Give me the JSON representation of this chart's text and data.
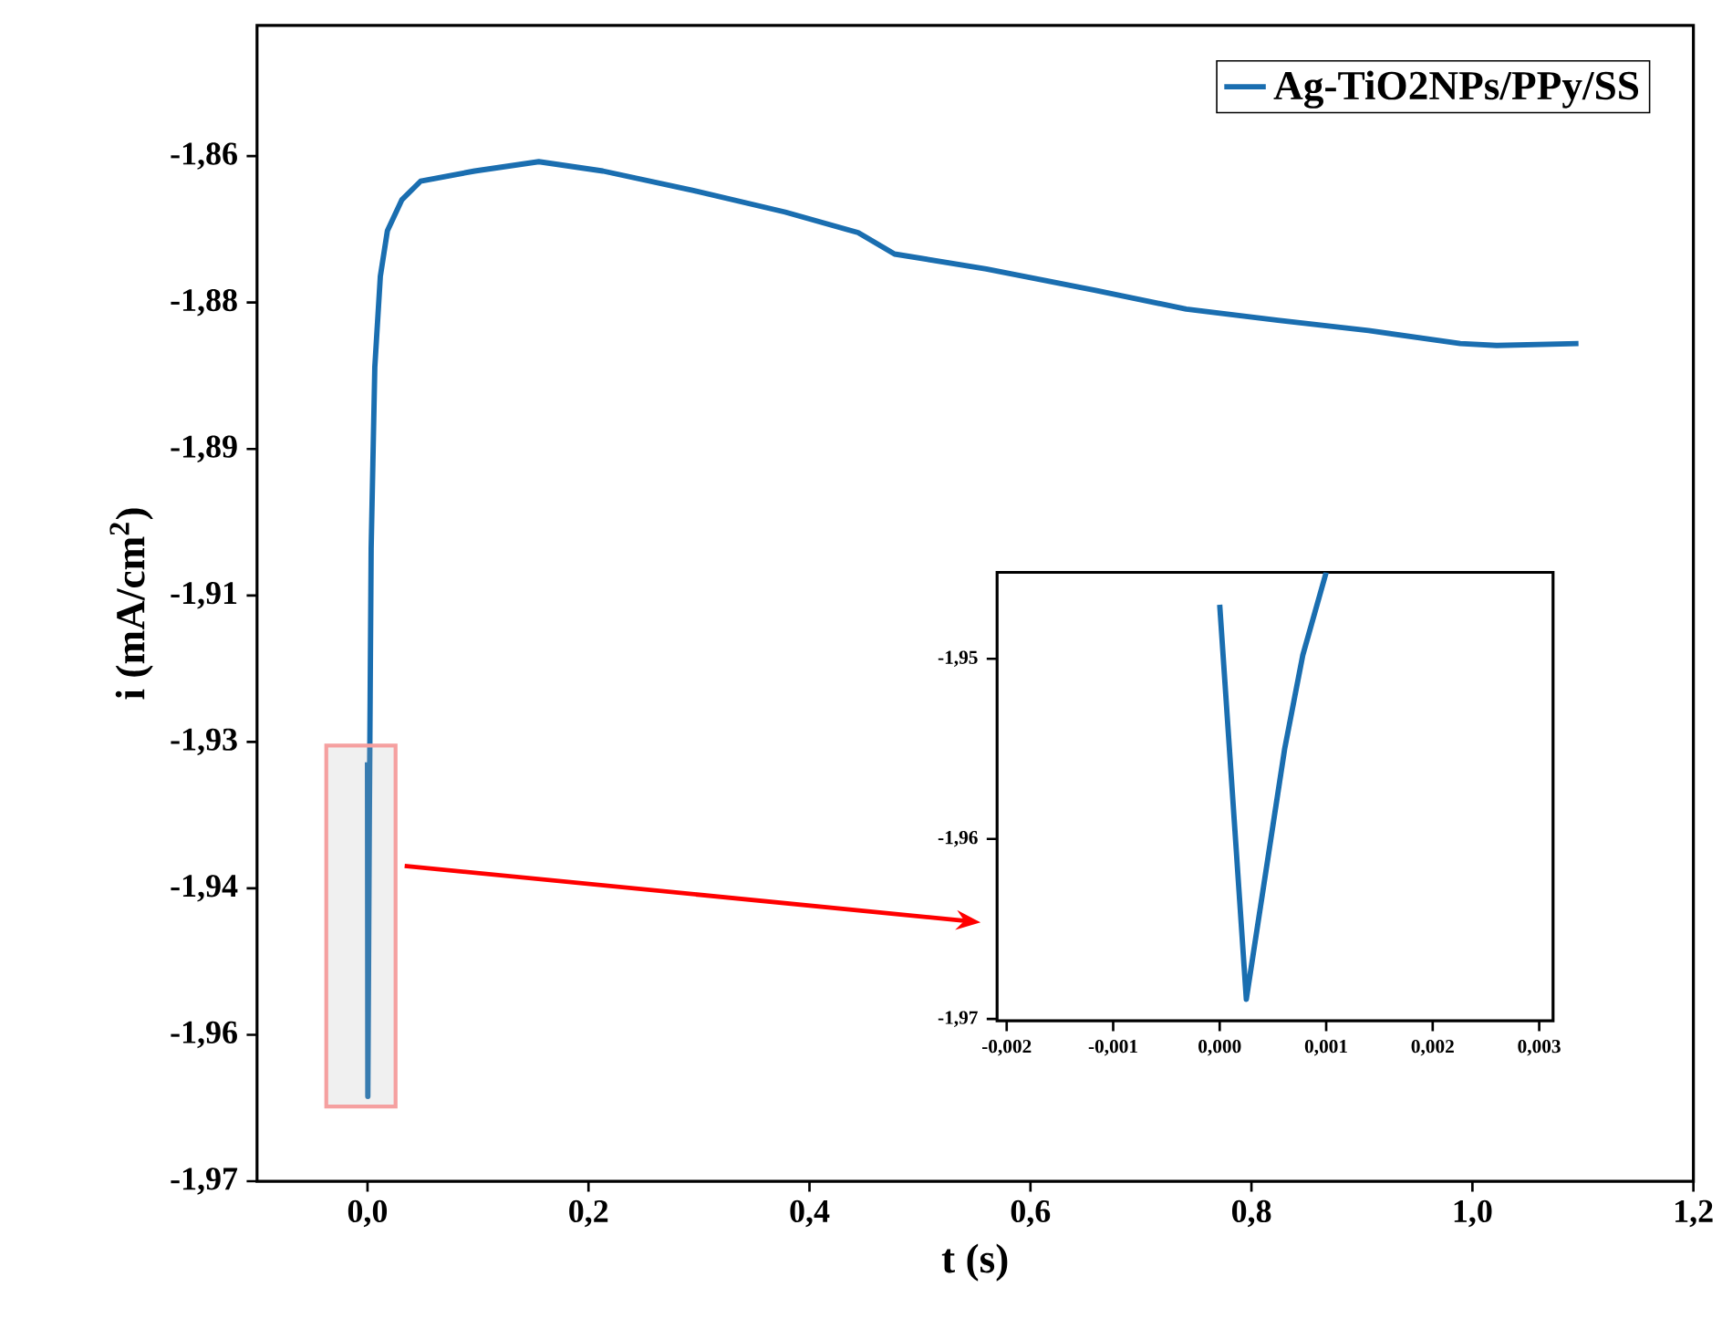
{
  "chart_data": [
    {
      "type": "line",
      "xlabel": "t (s)",
      "ylabel": "i (mA/cm$^{2}$)",
      "legend": "top right",
      "series": [
        {
          "name": "Ag-TiO2NPs/PPy/SS",
          "color": "#1a6eb0",
          "x": [
            0,
            0.0003,
            0.0017,
            0.0033,
            0.0066,
            0.0116,
            0.018,
            0.031,
            0.048,
            0.097,
            0.155,
            0.213,
            0.295,
            0.378,
            0.444,
            0.477,
            0.56,
            0.659,
            0.741,
            0.824,
            0.906,
            0.989,
            1.022,
            1.096
          ],
          "values": [
            -1.9275,
            -1.9633,
            -1.9325,
            -1.9046,
            -1.8851,
            -1.8754,
            -1.8705,
            -1.8672,
            -1.8652,
            -1.8641,
            -1.8631,
            -1.8641,
            -1.8662,
            -1.8685,
            -1.8707,
            -1.873,
            -1.8746,
            -1.8769,
            -1.8789,
            -1.8801,
            -1.8812,
            -1.8826,
            -1.8828,
            -1.8826
          ]
        }
      ],
      "xlim": [
        -0.1,
        1.2
      ],
      "ylim": [
        -1.9724,
        -1.8485
      ],
      "xticks": [
        {
          "value": 0,
          "label": "0,0"
        },
        {
          "value": 0.2,
          "label": "0,2"
        },
        {
          "value": 0.4,
          "label": "0,4"
        },
        {
          "value": 0.6,
          "label": "0,6"
        },
        {
          "value": 0.8,
          "label": "0,8"
        },
        {
          "value": 1.0,
          "label": "1,0"
        },
        {
          "value": 1.2,
          "label": "1,2"
        }
      ],
      "yticks": [
        {
          "value": -1.8625,
          "label": "-1,86"
        },
        {
          "value": -1.8782,
          "label": "-1,88"
        },
        {
          "value": -1.8939,
          "label": "-1,89"
        },
        {
          "value": -1.9096,
          "label": "-1,91"
        },
        {
          "value": -1.9253,
          "label": "-1,93"
        },
        {
          "value": -1.941,
          "label": "-1,94"
        },
        {
          "value": -1.9567,
          "label": "-1,96"
        },
        {
          "value": -1.9724,
          "label": "-1,97"
        }
      ]
    },
    {
      "type": "line",
      "series": [
        {
          "color": "#1a6eb0",
          "x": [
            0,
            0.00025,
            0.00061,
            0.00078,
            0.001
          ],
          "values": [
            -1.947,
            -1.9689,
            -1.955,
            -1.9498,
            -1.9452
          ]
        }
      ],
      "xlim": [
        -0.00209,
        0.00313
      ],
      "ylim": [
        -1.9701,
        -1.9452
      ],
      "xticks": [
        {
          "value": -0.002,
          "label": "-0,002"
        },
        {
          "value": -0.001,
          "label": "-0,001"
        },
        {
          "value": 0,
          "label": "0,000"
        },
        {
          "value": 0.001,
          "label": "0,001"
        },
        {
          "value": 0.002,
          "label": "0,002"
        },
        {
          "value": 0.003,
          "label": "0,003"
        }
      ],
      "yticks": [
        {
          "value": -1.95,
          "label": "-1,95"
        },
        {
          "value": -1.96,
          "label": "-1,96"
        },
        {
          "value": -1.97,
          "label": "-1,97"
        }
      ]
    }
  ]
}
